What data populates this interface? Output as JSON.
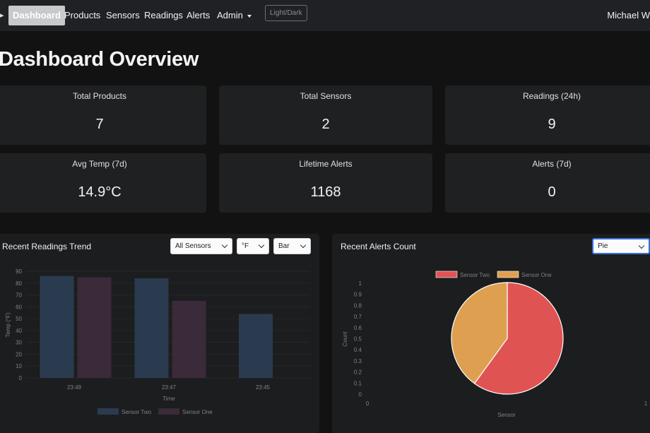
{
  "nav": {
    "items": [
      {
        "label": "Dashboard",
        "active": true
      },
      {
        "label": "Products"
      },
      {
        "label": "Sensors"
      },
      {
        "label": "Readings"
      },
      {
        "label": "Alerts"
      },
      {
        "label": "Admin"
      }
    ],
    "theme_toggle": "Light/Dark",
    "user": "Michael W"
  },
  "page_title": "Dashboard Overview",
  "stats": [
    {
      "label": "Total Products",
      "value": "7"
    },
    {
      "label": "Total Sensors",
      "value": "2"
    },
    {
      "label": "Readings (24h)",
      "value": "9"
    },
    {
      "label": "Avg Temp (7d)",
      "value": "14.9°C"
    },
    {
      "label": "Lifetime Alerts",
      "value": "1168"
    },
    {
      "label": "Alerts (7d)",
      "value": "0"
    }
  ],
  "readings_panel": {
    "title": "Recent Readings Trend",
    "filters": {
      "sensor": "All Sensors",
      "unit": "°F",
      "chart_type": "Bar"
    }
  },
  "alerts_panel": {
    "title": "Recent Alerts Count",
    "filters": {
      "chart_type": "Pie"
    }
  },
  "colors": {
    "sensor_two_bar": "#2a3b4f",
    "sensor_one_bar": "#3a2a3a",
    "pie_sensor_two": "#e05353",
    "pie_sensor_one": "#dea050"
  },
  "chart_data": [
    {
      "type": "bar",
      "categories": [
        "23:49",
        "23:47",
        "23:45"
      ],
      "series": [
        {
          "name": "Sensor Two",
          "values": [
            86,
            84,
            54
          ]
        },
        {
          "name": "Sensor One",
          "values": [
            85,
            65,
            null
          ]
        }
      ],
      "xlabel": "Time",
      "ylabel": "Temp (°F)",
      "ylim": [
        0,
        90
      ],
      "yticks": [
        "0",
        "10",
        "20",
        "30",
        "40",
        "50",
        "60",
        "70",
        "80",
        "90"
      ],
      "legend": "bottom"
    },
    {
      "type": "pie",
      "series": [
        {
          "name": "Sensor Two",
          "value": 0.6
        },
        {
          "name": "Sensor One",
          "value": 0.4
        }
      ],
      "xlabel": "Sensor",
      "ylabel": "Count",
      "yticks": [
        "0",
        "0.1",
        "0.2",
        "0.3",
        "0.4",
        "0.5",
        "0.6",
        "0.7",
        "0.8",
        "0.9",
        "1"
      ],
      "xticks": [
        "0",
        "1"
      ],
      "legend": "top"
    }
  ]
}
